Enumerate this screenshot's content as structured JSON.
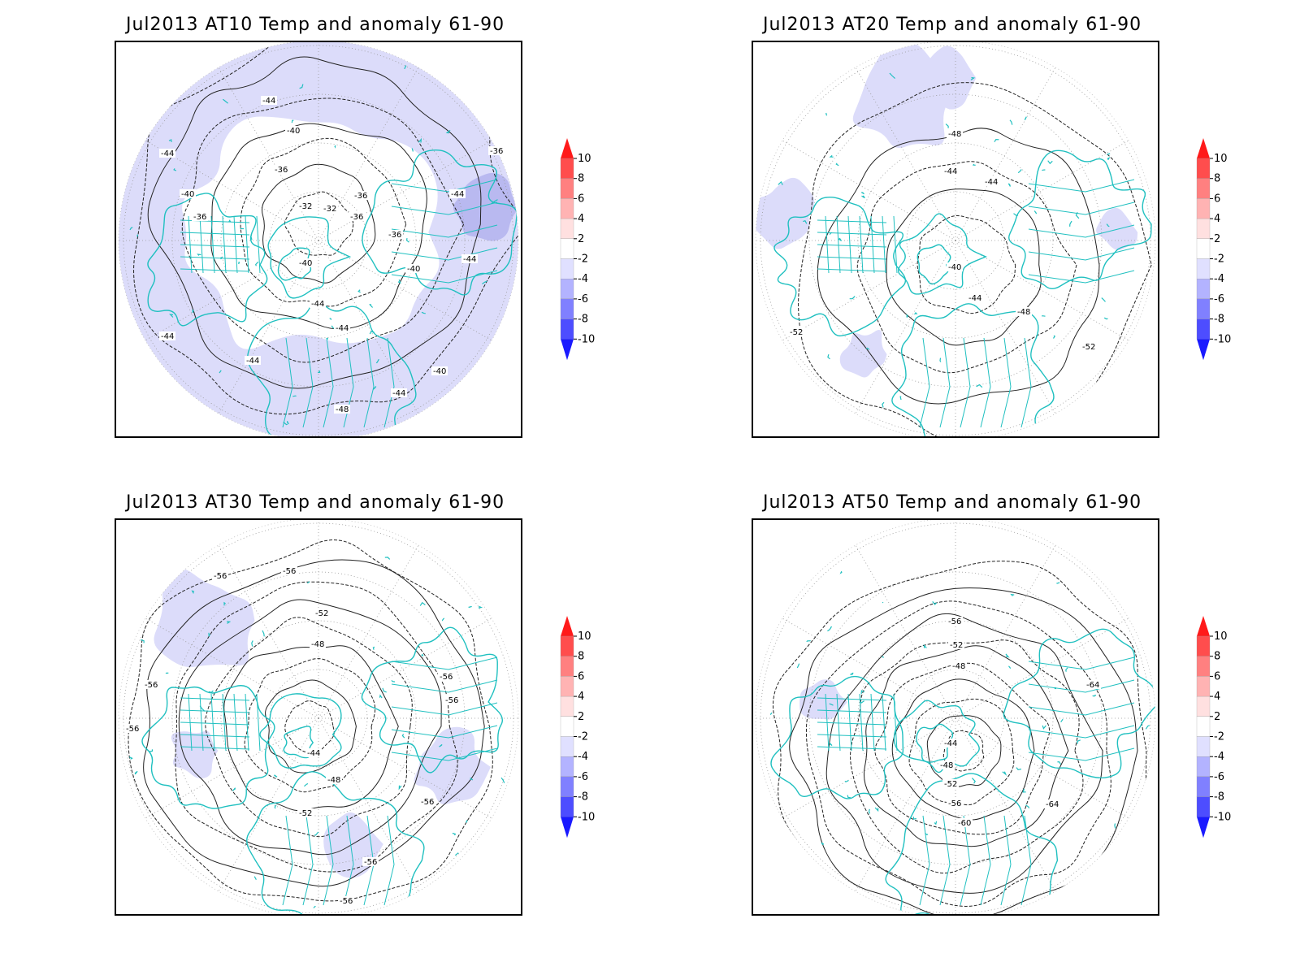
{
  "panels": [
    {
      "title": "Jul2013 AT10 Temp and anomaly 61-90",
      "contour_labels": [
        "-44",
        "-40",
        "-36",
        "-32",
        "-32",
        "-36",
        "-36",
        "-36",
        "-40",
        "-36",
        "-44",
        "-44",
        "-44",
        "-40",
        "-36",
        "-40",
        "-44",
        "-44",
        "-40",
        "-44",
        "-48",
        "-44",
        "-44"
      ]
    },
    {
      "title": "Jul2013 AT20 Temp and anomaly 61-90",
      "contour_labels": [
        "-48",
        "-44",
        "-44",
        "-40",
        "-44",
        "-48",
        "-52",
        "-52"
      ]
    },
    {
      "title": "Jul2013 AT30 Temp and anomaly 61-90",
      "contour_labels": [
        "-56",
        "-56",
        "-52",
        "-48",
        "-56",
        "-56",
        "-56",
        "-56",
        "-44",
        "-48",
        "-52",
        "-56",
        "-56",
        "-56"
      ]
    },
    {
      "title": "Jul2013 AT50 Temp and anomaly 61-90",
      "contour_labels": [
        "-56",
        "-52",
        "-48",
        "-44",
        "-48",
        "-52",
        "-56",
        "-60",
        "-64",
        "-64"
      ]
    }
  ],
  "colorbar": {
    "labels": [
      "10",
      "8",
      "6",
      "4",
      "2",
      "-2",
      "-4",
      "-6",
      "-8",
      "-10"
    ],
    "colors": [
      "#ff1a1a",
      "#ff4d4d",
      "#ff8080",
      "#ffb3b3",
      "#ffe0e0",
      "#ffffff",
      "#e0e0ff",
      "#b3b3ff",
      "#8080ff",
      "#4d4dff",
      "#1a1aff"
    ]
  },
  "colors": {
    "coast": "#20c0c0",
    "anomaly_light": "#dcdcfa",
    "anomaly_medium": "#b9b9f0",
    "anomaly_strong": "#9a9ae6"
  }
}
